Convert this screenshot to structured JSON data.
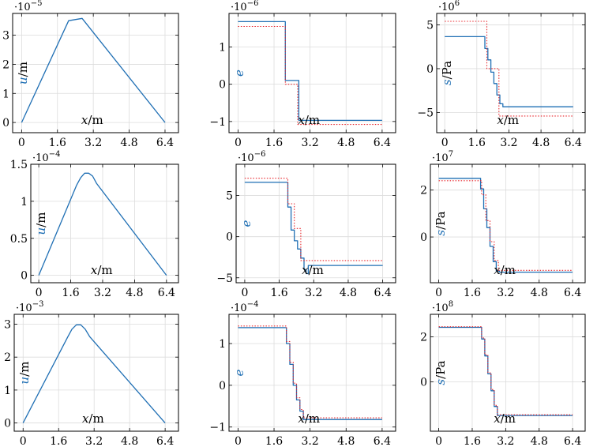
{
  "colors": {
    "solid": "#1f6fb4",
    "dotted": "#e8242a",
    "grid": "#dcdcdc"
  },
  "chart_data": [
    {
      "type": "line",
      "title": "",
      "xlabel": "x/m",
      "ylabel": "u/m",
      "ylabel_var": "u",
      "ylabel_unit": "/m",
      "exponent": "·10^-5",
      "exponent_base": "·10",
      "exponent_power": "−5",
      "xlim": [
        -0.4,
        7.0
      ],
      "ylim": [
        -0.35,
        3.75
      ],
      "xticks": [
        0,
        1.6,
        3.2,
        4.8,
        6.4
      ],
      "xtick_labels": [
        "0",
        "1.6",
        "3.2",
        "4.8",
        "6.4"
      ],
      "yticks": [
        0,
        1,
        2,
        3
      ],
      "ytick_labels": [
        "0",
        "1",
        "2",
        "3"
      ],
      "series": [
        {
          "name": "solid",
          "style": "solid",
          "x": [
            0,
            2.1,
            2.7,
            6.4
          ],
          "y": [
            0,
            3.5,
            3.58,
            0
          ]
        }
      ]
    },
    {
      "type": "line",
      "title": "",
      "xlabel": "x/m",
      "ylabel": "e",
      "ylabel_var": "e",
      "ylabel_unit": "",
      "exponent": "·10^-6",
      "exponent_base": "·10",
      "exponent_power": "−6",
      "xlim": [
        -0.4,
        7.0
      ],
      "ylim": [
        -1.3,
        1.9
      ],
      "xticks": [
        0,
        1.6,
        3.2,
        4.8,
        6.4
      ],
      "xtick_labels": [
        "0",
        "1.6",
        "3.2",
        "4.8",
        "6.4"
      ],
      "yticks": [
        -1,
        0,
        1
      ],
      "ytick_labels": [
        "−1",
        "0",
        "1"
      ],
      "series": [
        {
          "name": "solid",
          "style": "solid",
          "x": [
            0,
            2.1,
            2.1,
            2.7,
            2.7,
            6.4
          ],
          "y": [
            1.68,
            1.68,
            0.1,
            0.1,
            -0.97,
            -0.97
          ]
        },
        {
          "name": "dotted",
          "style": "dotted",
          "x": [
            0,
            2.1,
            2.1,
            2.65,
            2.65,
            6.4
          ],
          "y": [
            1.55,
            1.55,
            0.0,
            0.0,
            -1.08,
            -1.08
          ]
        }
      ]
    },
    {
      "type": "line",
      "title": "",
      "xlabel": "x/m",
      "ylabel": "s/Pa",
      "ylabel_var": "s",
      "ylabel_unit": "/Pa",
      "exponent": "·10^6",
      "exponent_base": "·10",
      "exponent_power": "6",
      "xlim": [
        -0.4,
        7.0
      ],
      "ylim": [
        -7.3,
        6.3
      ],
      "xticks": [
        0,
        1.6,
        3.2,
        4.8,
        6.4
      ],
      "xtick_labels": [
        "0",
        "1.6",
        "3.2",
        "4.8",
        "6.4"
      ],
      "yticks": [
        -5,
        0,
        5
      ],
      "ytick_labels": [
        "−5",
        "0",
        "5"
      ],
      "series": [
        {
          "name": "solid",
          "style": "solid",
          "x": [
            0,
            2.0,
            2.0,
            2.15,
            2.15,
            2.3,
            2.3,
            2.45,
            2.45,
            2.6,
            2.6,
            2.75,
            2.75,
            2.9,
            2.9,
            6.4
          ],
          "y": [
            3.65,
            3.65,
            2.3,
            2.3,
            1.0,
            1.0,
            -0.4,
            -0.4,
            -1.7,
            -1.7,
            -3.0,
            -3.0,
            -4.0,
            -4.0,
            -4.35,
            -4.35
          ]
        },
        {
          "name": "dotted",
          "style": "dotted",
          "x": [
            0,
            2.1,
            2.1,
            2.7,
            2.7,
            6.4
          ],
          "y": [
            5.4,
            5.4,
            0.0,
            0.0,
            -5.4,
            -5.4
          ]
        }
      ]
    },
    {
      "type": "line",
      "title": "",
      "xlabel": "x/m",
      "ylabel": "u/m",
      "ylabel_var": "u",
      "ylabel_unit": "/m",
      "exponent": "·10^-4",
      "exponent_base": "·10",
      "exponent_power": "−4",
      "xlim": [
        -0.4,
        7.0
      ],
      "ylim": [
        -0.1,
        1.5
      ],
      "xticks": [
        0,
        1.6,
        3.2,
        4.8,
        6.4
      ],
      "xtick_labels": [
        "0",
        "1.6",
        "3.2",
        "4.8",
        "6.4"
      ],
      "yticks": [
        0,
        0.5,
        1,
        1.5
      ],
      "ytick_labels": [
        "0",
        "0.5",
        "1",
        "1.5"
      ],
      "series": [
        {
          "name": "solid",
          "style": "solid",
          "x": [
            0,
            1.9,
            2.1,
            2.3,
            2.5,
            2.7,
            2.9,
            6.4
          ],
          "y": [
            0,
            1.22,
            1.32,
            1.38,
            1.38,
            1.34,
            1.24,
            0
          ]
        }
      ]
    },
    {
      "type": "line",
      "title": "",
      "xlabel": "x/m",
      "ylabel": "e",
      "ylabel_var": "e",
      "ylabel_unit": "",
      "exponent": "·10^-6",
      "exponent_base": "·10",
      "exponent_power": "−6",
      "xlim": [
        -0.4,
        7.0
      ],
      "ylim": [
        -5.6,
        8.8
      ],
      "xticks": [
        0,
        1.6,
        3.2,
        4.8,
        6.4
      ],
      "xtick_labels": [
        "0",
        "1.6",
        "3.2",
        "4.8",
        "6.4"
      ],
      "yticks": [
        -5,
        0,
        5
      ],
      "ytick_labels": [
        "−5",
        "0",
        "5"
      ],
      "series": [
        {
          "name": "solid",
          "style": "solid",
          "x": [
            0,
            2.0,
            2.0,
            2.15,
            2.15,
            2.3,
            2.3,
            2.45,
            2.45,
            2.6,
            2.6,
            2.75,
            2.75,
            2.85,
            2.85,
            2.95,
            2.95,
            6.4
          ],
          "y": [
            6.6,
            6.6,
            3.6,
            3.6,
            0.8,
            0.8,
            -0.5,
            -0.5,
            -1.5,
            -1.5,
            -2.6,
            -2.6,
            -4.0,
            -4.0,
            -4.5,
            -4.5,
            -3.5,
            -3.5
          ]
        },
        {
          "name": "dotted",
          "style": "dotted",
          "x": [
            0,
            2.0,
            2.0,
            2.3,
            2.3,
            2.6,
            2.6,
            6.4
          ],
          "y": [
            7.1,
            7.1,
            4.0,
            4.0,
            1.0,
            1.0,
            -2.9,
            -2.9
          ]
        }
      ]
    },
    {
      "type": "line",
      "title": "",
      "xlabel": "x/m",
      "ylabel": "s/Pa",
      "ylabel_var": "s",
      "ylabel_unit": "/Pa",
      "exponent": "·10^7",
      "exponent_base": "·10",
      "exponent_power": "7",
      "xlim": [
        -0.4,
        7.0
      ],
      "ylim": [
        -1.95,
        3.1
      ],
      "xticks": [
        0,
        1.6,
        3.2,
        4.8,
        6.4
      ],
      "xtick_labels": [
        "0",
        "1.6",
        "3.2",
        "4.8",
        "6.4"
      ],
      "yticks": [
        0,
        2
      ],
      "ytick_labels": [
        "0",
        "2"
      ],
      "series": [
        {
          "name": "solid",
          "style": "solid",
          "x": [
            0,
            2.0,
            2.0,
            2.15,
            2.15,
            2.3,
            2.3,
            2.45,
            2.45,
            2.6,
            2.6,
            2.75,
            2.75,
            2.9,
            2.9,
            6.4
          ],
          "y": [
            2.5,
            2.5,
            2.05,
            2.05,
            1.2,
            1.2,
            0.4,
            0.4,
            -0.4,
            -0.4,
            -1.05,
            -1.05,
            -1.45,
            -1.45,
            -1.5,
            -1.5
          ]
        },
        {
          "name": "dotted",
          "style": "dotted",
          "x": [
            0,
            2.05,
            2.05,
            2.25,
            2.25,
            2.45,
            2.45,
            2.65,
            2.65,
            2.85,
            2.85,
            6.4
          ],
          "y": [
            2.4,
            2.4,
            1.8,
            1.8,
            0.7,
            0.7,
            -0.2,
            -0.2,
            -1.0,
            -1.0,
            -1.42,
            -1.42
          ]
        }
      ]
    },
    {
      "type": "line",
      "title": "",
      "xlabel": "x/m",
      "ylabel": "u/m",
      "ylabel_var": "u",
      "ylabel_unit": "/m",
      "exponent": "·10^-3",
      "exponent_base": "·10",
      "exponent_power": "−3",
      "xlim": [
        -0.4,
        7.0
      ],
      "ylim": [
        -0.25,
        3.3
      ],
      "xticks": [
        0,
        1.6,
        3.2,
        4.8,
        6.4
      ],
      "xtick_labels": [
        "0",
        "1.6",
        "3.2",
        "4.8",
        "6.4"
      ],
      "yticks": [
        0,
        1,
        2,
        3
      ],
      "ytick_labels": [
        "0",
        "1",
        "2",
        "3"
      ],
      "series": [
        {
          "name": "solid",
          "style": "solid",
          "x": [
            0,
            2.0,
            2.2,
            2.4,
            2.6,
            2.8,
            3.0,
            6.4
          ],
          "y": [
            0,
            2.6,
            2.85,
            2.98,
            2.98,
            2.85,
            2.62,
            0
          ]
        }
      ]
    },
    {
      "type": "line",
      "title": "",
      "xlabel": "x/m",
      "ylabel": "e",
      "ylabel_var": "e",
      "ylabel_unit": "",
      "exponent": "·10^-4",
      "exponent_base": "·10",
      "exponent_power": "−4",
      "xlim": [
        -0.4,
        7.0
      ],
      "ylim": [
        -1.1,
        1.7
      ],
      "xticks": [
        0,
        1.6,
        3.2,
        4.8,
        6.4
      ],
      "xtick_labels": [
        "0",
        "1.6",
        "3.2",
        "4.8",
        "6.4"
      ],
      "yticks": [
        -1,
        0,
        1
      ],
      "ytick_labels": [
        "−1",
        "0",
        "1"
      ],
      "series": [
        {
          "name": "solid",
          "style": "solid",
          "x": [
            0,
            2.15,
            2.15,
            2.3,
            2.3,
            2.45,
            2.45,
            2.6,
            2.6,
            2.75,
            2.75,
            2.9,
            2.9,
            6.4
          ],
          "y": [
            1.38,
            1.38,
            1.0,
            1.0,
            0.5,
            0.5,
            0.0,
            0.0,
            -0.35,
            -0.35,
            -0.62,
            -0.62,
            -0.82,
            -0.82
          ]
        },
        {
          "name": "dotted",
          "style": "dotted",
          "x": [
            0,
            2.15,
            2.15,
            2.3,
            2.3,
            2.45,
            2.45,
            2.6,
            2.6,
            2.75,
            2.75,
            2.9,
            2.9,
            6.4
          ],
          "y": [
            1.42,
            1.42,
            1.05,
            1.05,
            0.55,
            0.55,
            0.05,
            0.05,
            -0.3,
            -0.3,
            -0.58,
            -0.58,
            -0.78,
            -0.78
          ]
        }
      ]
    },
    {
      "type": "line",
      "title": "",
      "xlabel": "x/m",
      "ylabel": "s/Pa",
      "ylabel_var": "s",
      "ylabel_unit": "/Pa",
      "exponent": "·10^8",
      "exponent_base": "·10",
      "exponent_power": "8",
      "xlim": [
        -0.4,
        7.0
      ],
      "ylim": [
        -2.2,
        3.0
      ],
      "xticks": [
        0,
        1.6,
        3.2,
        4.8,
        6.4
      ],
      "xtick_labels": [
        "0",
        "1.6",
        "3.2",
        "4.8",
        "6.4"
      ],
      "yticks": [
        0,
        2
      ],
      "ytick_labels": [
        "0",
        "2"
      ],
      "series": [
        {
          "name": "solid",
          "style": "solid",
          "x": [
            0,
            2.05,
            2.05,
            2.2,
            2.2,
            2.35,
            2.35,
            2.5,
            2.5,
            2.65,
            2.65,
            2.8,
            2.8,
            6.4
          ],
          "y": [
            2.42,
            2.42,
            1.9,
            1.9,
            1.15,
            1.15,
            0.35,
            0.35,
            -0.4,
            -0.4,
            -1.1,
            -1.1,
            -1.5,
            -1.5
          ]
        },
        {
          "name": "dotted",
          "style": "dotted",
          "x": [
            0,
            2.05,
            2.05,
            2.2,
            2.2,
            2.35,
            2.35,
            2.5,
            2.5,
            2.65,
            2.65,
            2.8,
            2.8,
            6.4
          ],
          "y": [
            2.45,
            2.45,
            1.95,
            1.95,
            1.2,
            1.2,
            0.4,
            0.4,
            -0.35,
            -0.35,
            -1.05,
            -1.05,
            -1.47,
            -1.47
          ]
        }
      ]
    }
  ]
}
